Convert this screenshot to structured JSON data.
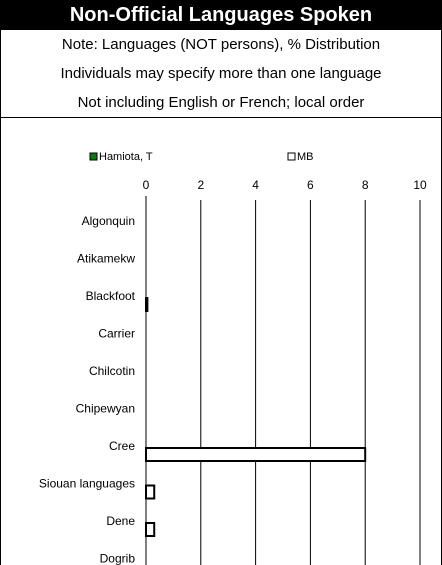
{
  "chart_data": {
    "type": "bar",
    "orientation": "horizontal",
    "title": "Non-Official Languages Spoken",
    "notes": [
      "Note: Languages (NOT persons), % Distribution",
      "Individuals may specify more than one language",
      "Not including English or French; local order"
    ],
    "categories": [
      "Algonquin",
      "Atikamekw",
      "Blackfoot",
      "Carrier",
      "Chilcotin",
      "Chipewyan",
      "Cree",
      "Siouan languages",
      "Dene",
      "Dogrib"
    ],
    "series": [
      {
        "name": "Hamiota, T",
        "color": "#008000",
        "values": [
          0,
          0,
          0,
          0,
          0,
          0,
          0,
          0,
          0,
          0
        ]
      },
      {
        "name": "MB",
        "color": "#ffffff",
        "values": [
          0,
          0,
          0.05,
          0,
          0,
          0,
          8,
          0.3,
          0.3,
          0
        ]
      }
    ],
    "xlim": [
      0,
      10
    ],
    "xticks": [
      0,
      2,
      4,
      6,
      8,
      10
    ],
    "grid": true,
    "legend": "top"
  }
}
